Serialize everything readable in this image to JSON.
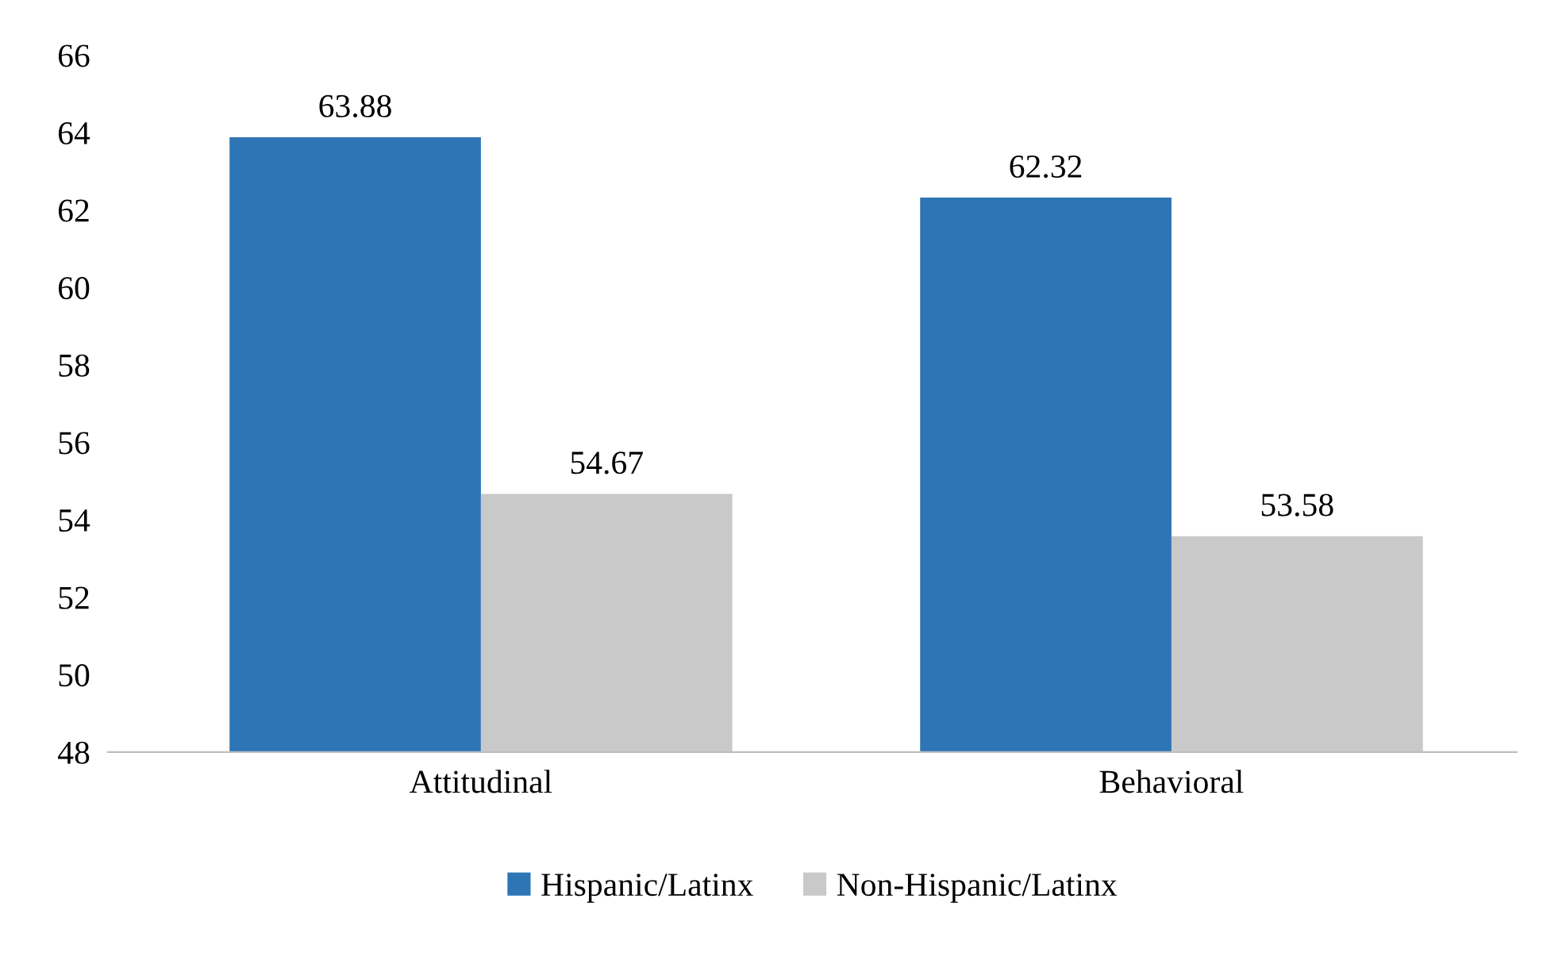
{
  "chart_data": {
    "type": "bar",
    "categories": [
      "Attitudinal",
      "Behavioral"
    ],
    "series": [
      {
        "name": "Hispanic/Latinx",
        "color": "#2e75b6",
        "values": [
          63.88,
          62.32
        ]
      },
      {
        "name": "Non-Hispanic/Latinx",
        "color": "#c9c9c9",
        "values": [
          54.67,
          53.58
        ]
      }
    ],
    "ylim": [
      48,
      66
    ],
    "yticks": [
      48,
      50,
      52,
      54,
      56,
      58,
      60,
      62,
      64,
      66
    ],
    "data_labels": true,
    "legend": "bottom",
    "grid": false
  }
}
